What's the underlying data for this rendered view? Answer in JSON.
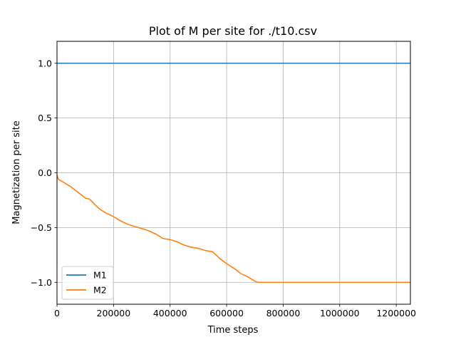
{
  "chart_data": {
    "type": "line",
    "title": "Plot of M per site for ./t10.csv",
    "xlabel": "Time steps",
    "ylabel": "Magnetization per site",
    "xlim": [
      0,
      1250000
    ],
    "ylim": [
      -1.2,
      1.2
    ],
    "xticks": [
      0,
      200000,
      400000,
      600000,
      800000,
      1000000,
      1200000
    ],
    "xtick_labels": [
      "0",
      "200000",
      "400000",
      "600000",
      "800000",
      "1000000",
      "1200000"
    ],
    "yticks": [
      -1.0,
      -0.5,
      0.0,
      0.5,
      1.0
    ],
    "ytick_labels": [
      "−1.0",
      "−0.5",
      "0.0",
      "0.5",
      "1.0"
    ],
    "grid": true,
    "legend_position": "lower-left",
    "series": [
      {
        "name": "M1",
        "color": "#1f77b4",
        "x": [
          0,
          100000,
          200000,
          300000,
          400000,
          500000,
          600000,
          700000,
          800000,
          900000,
          1000000,
          1100000,
          1200000,
          1250000
        ],
        "y": [
          1.0,
          1.0,
          1.0,
          1.0,
          1.0,
          1.0,
          1.0,
          1.0,
          1.0,
          1.0,
          1.0,
          1.0,
          1.0,
          1.0
        ]
      },
      {
        "name": "M2",
        "color": "#ff7f0e",
        "x": [
          0,
          5000,
          25000,
          50000,
          75000,
          100000,
          115000,
          130000,
          150000,
          175000,
          200000,
          225000,
          250000,
          275000,
          300000,
          325000,
          350000,
          375000,
          400000,
          425000,
          450000,
          475000,
          500000,
          525000,
          550000,
          575000,
          600000,
          625000,
          650000,
          675000,
          700000,
          710000,
          750000,
          800000,
          900000,
          1000000,
          1100000,
          1200000,
          1250000
        ],
        "y": [
          -0.02,
          -0.06,
          -0.09,
          -0.13,
          -0.18,
          -0.23,
          -0.24,
          -0.28,
          -0.33,
          -0.37,
          -0.4,
          -0.44,
          -0.47,
          -0.49,
          -0.51,
          -0.53,
          -0.56,
          -0.6,
          -0.61,
          -0.63,
          -0.66,
          -0.68,
          -0.69,
          -0.71,
          -0.72,
          -0.78,
          -0.83,
          -0.87,
          -0.92,
          -0.95,
          -0.99,
          -1.0,
          -1.0,
          -1.0,
          -1.0,
          -1.0,
          -1.0,
          -1.0,
          -1.0
        ]
      }
    ]
  }
}
